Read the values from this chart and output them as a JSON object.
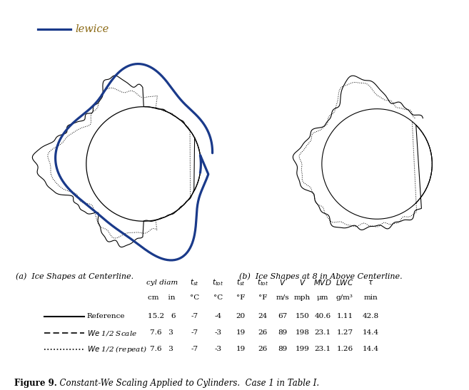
{
  "title_a": "(a)  Ice Shapes at Centerline.",
  "title_b": "(b)  Ice Shapes at 8 in Above Centerline.",
  "legend_label": "lewice",
  "legend_color": "#1a3a8a",
  "legend_text_color": "#8B6914",
  "figure_caption_bold": "Figure 9.",
  "figure_caption_rest": "  Constant-We Scaling Applied to Cylinders.  Case 1 in Table I.",
  "bg_color": "#ffffff",
  "table_data": [
    [
      "15.2",
      "6",
      "-7",
      "-4",
      "20",
      "24",
      "67",
      "150",
      "40.6",
      "1.11",
      "42.8"
    ],
    [
      "7.6",
      "3",
      "-7",
      "-3",
      "19",
      "26",
      "89",
      "198",
      "23.1",
      "1.27",
      "14.4"
    ],
    [
      "7.6",
      "3",
      "-7",
      "-3",
      "19",
      "26",
      "89",
      "199",
      "23.1",
      "1.26",
      "14.4"
    ]
  ]
}
